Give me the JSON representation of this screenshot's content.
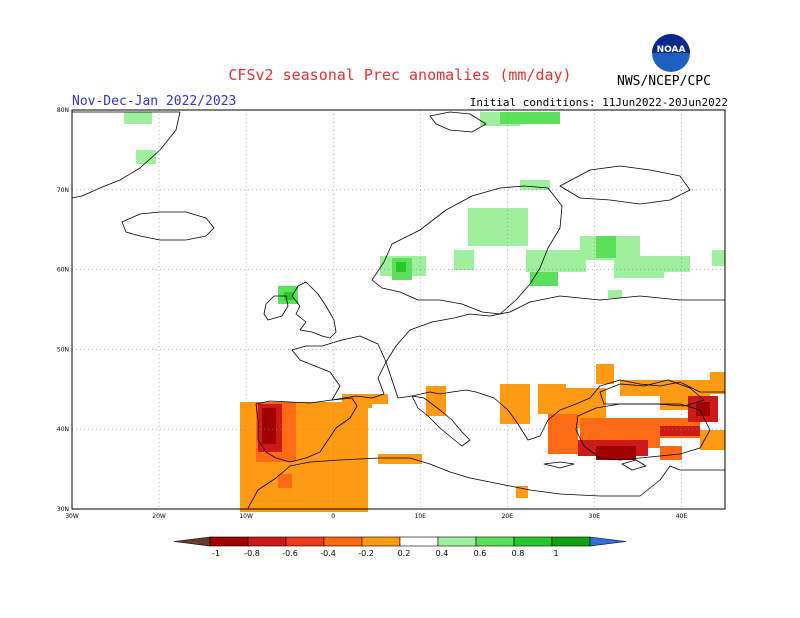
{
  "title": "CFSv2 seasonal Prec anomalies (mm/day)",
  "period": "Nov-Dec-Jan 2022/2023",
  "initial_conditions": "Initial conditions: 11Jun2022-20Jun2022",
  "agency": "NWS/NCEP/CPC",
  "logo_text": "NOAA",
  "map": {
    "lon_range": [
      -30,
      45
    ],
    "lat_range": [
      30,
      80
    ],
    "lat_ticks": [
      "30N",
      "40N",
      "50N",
      "60N",
      "70N",
      "80N"
    ],
    "lon_ticks": [
      "30W",
      "20W",
      "10W",
      "0",
      "10E",
      "20E",
      "30E",
      "40E"
    ],
    "grid": "dotted"
  },
  "colorbar": {
    "labels": [
      "-1",
      "-0.8",
      "-0.6",
      "-0.4",
      "-0.2",
      "0.2",
      "0.4",
      "0.6",
      "0.8",
      "1"
    ],
    "colors": [
      "#6b3a2a",
      "#a00000",
      "#cc1a1a",
      "#ee3a1a",
      "#ff6a14",
      "#ff9a14",
      "#ffffff",
      "#9ef09e",
      "#5ae05a",
      "#28c828",
      "#10a010",
      "#2f6fdc"
    ]
  },
  "anomalies": {
    "positive_regions": [
      "Scandinavia",
      "western Norway",
      "Scotland",
      "Baltic / western Russia",
      "Svalbard / Arctic islands"
    ],
    "negative_regions": [
      "Iberian Peninsula",
      "Turkey / Anatolia",
      "Balkans",
      "Italy",
      "Cyprus / Levant",
      "Caucasus",
      "north-west Africa"
    ]
  }
}
